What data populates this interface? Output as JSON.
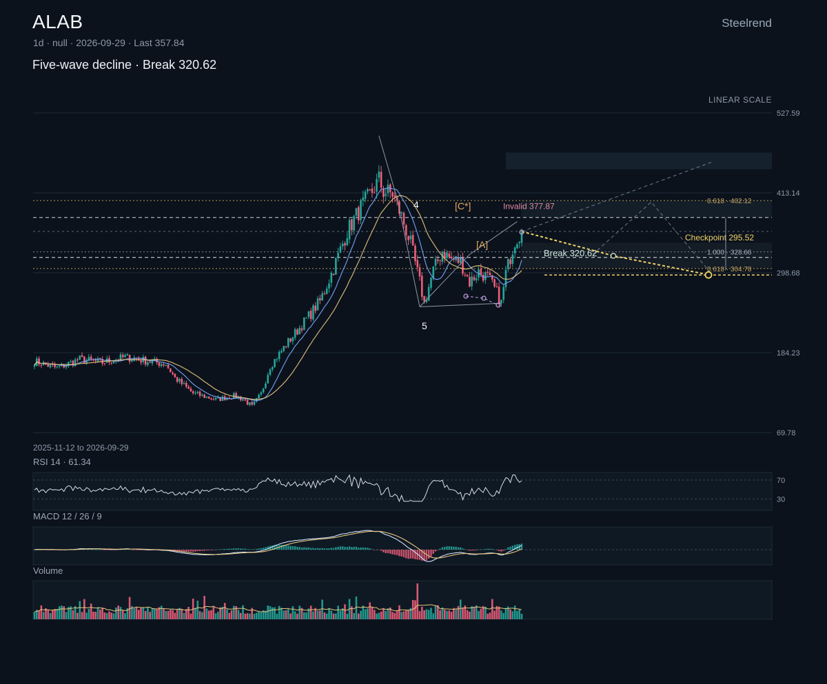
{
  "header": {
    "ticker": "ALAB",
    "brand": "Steelrend",
    "meta": "1d · null · 2026-09-29 · Last 357.84",
    "subtitle": "Five-wave decline · Break 320.62",
    "scale_label": "LINEAR SCALE",
    "date_range": "2025-11-12 to 2026-09-29"
  },
  "colors": {
    "background": "#0b121c",
    "up": "#26a69a",
    "down": "#ef5f7b",
    "ma_fast": "#7aa7ff",
    "ma_slow": "#e8c77e",
    "accent": "#f0d36a",
    "wave": "#8f98a6"
  },
  "chart_data": [
    {
      "type": "candlestick",
      "y_axis": {
        "min": 69.78,
        "max": 527.59,
        "ticks": [
          "527.59",
          "413.14",
          "298.68",
          "184.23",
          "69.78"
        ],
        "scale": "linear"
      },
      "x_range": [
        "2025-11-12",
        "2026-09-29"
      ],
      "last": 357.84,
      "series": [
        {
          "name": "price",
          "kind": "ohlc",
          "note": "daily candles approximated from the figure"
        },
        {
          "name": "fast MA",
          "kind": "line"
        },
        {
          "name": "slow MA",
          "kind": "line"
        }
      ],
      "levels": {
        "fib_0618_upper": {
          "label": "0.618 · 402.12",
          "value": 402.12
        },
        "fib_1000": {
          "label": "1.000 · 328.66",
          "value": 328.66
        },
        "fib_0618_lower": {
          "label": "0.618 · 304.78",
          "value": 304.78
        },
        "invalid": {
          "label": "Invalid 377.87",
          "value": 377.87
        },
        "break": {
          "label": "Break 320.62",
          "value": 320.62
        },
        "checkpoint": {
          "label": "Checkpoint 295.52",
          "value": 295.52
        }
      },
      "annotations": {
        "wave4": "4",
        "wave5": "5",
        "waveA": "[A]",
        "waveC": "[C*]"
      }
    },
    {
      "type": "line",
      "name": "RSI",
      "label": "RSI 14 · 61.34",
      "value": 61.34,
      "levels": [
        "70",
        "30"
      ]
    },
    {
      "type": "bar",
      "name": "MACD",
      "label": "MACD 12 / 26 / 9"
    },
    {
      "type": "bar",
      "name": "Volume",
      "label": "Volume"
    }
  ]
}
